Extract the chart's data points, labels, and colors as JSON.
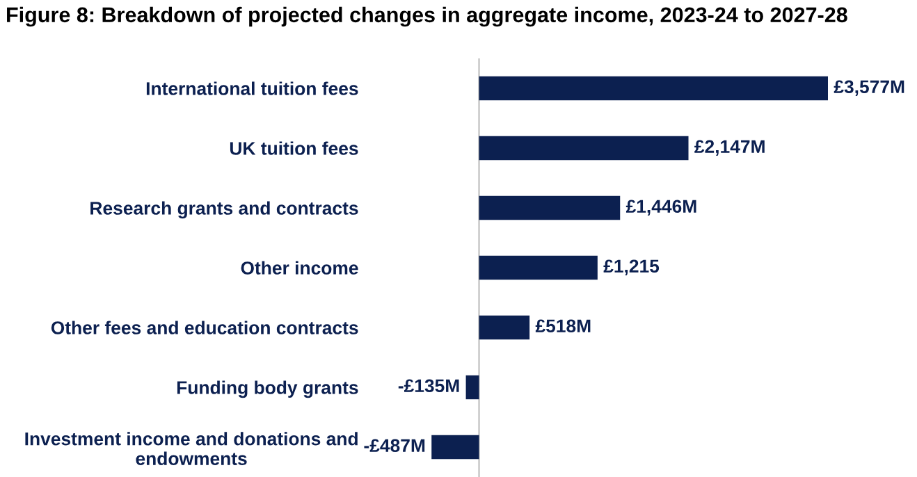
{
  "chart_data": {
    "type": "bar",
    "orientation": "horizontal",
    "title": "Figure 8: Breakdown of projected changes in aggregate income, 2023-24 to 2027-28",
    "categories": [
      "International tuition fees",
      "UK tuition fees",
      "Research grants and contracts",
      "Other income",
      "Other fees and education contracts",
      "Funding body grants",
      "Investment income and donations and\nendowments"
    ],
    "values": [
      3577,
      2147,
      1446,
      1215,
      518,
      -135,
      -487
    ],
    "value_labels": [
      "£3,577M",
      "£2,147M",
      "£1,446M",
      "£1,215",
      "£518M",
      "-£135M",
      "-£487M"
    ],
    "color": "#0c2050",
    "grid": false,
    "legend": false
  }
}
